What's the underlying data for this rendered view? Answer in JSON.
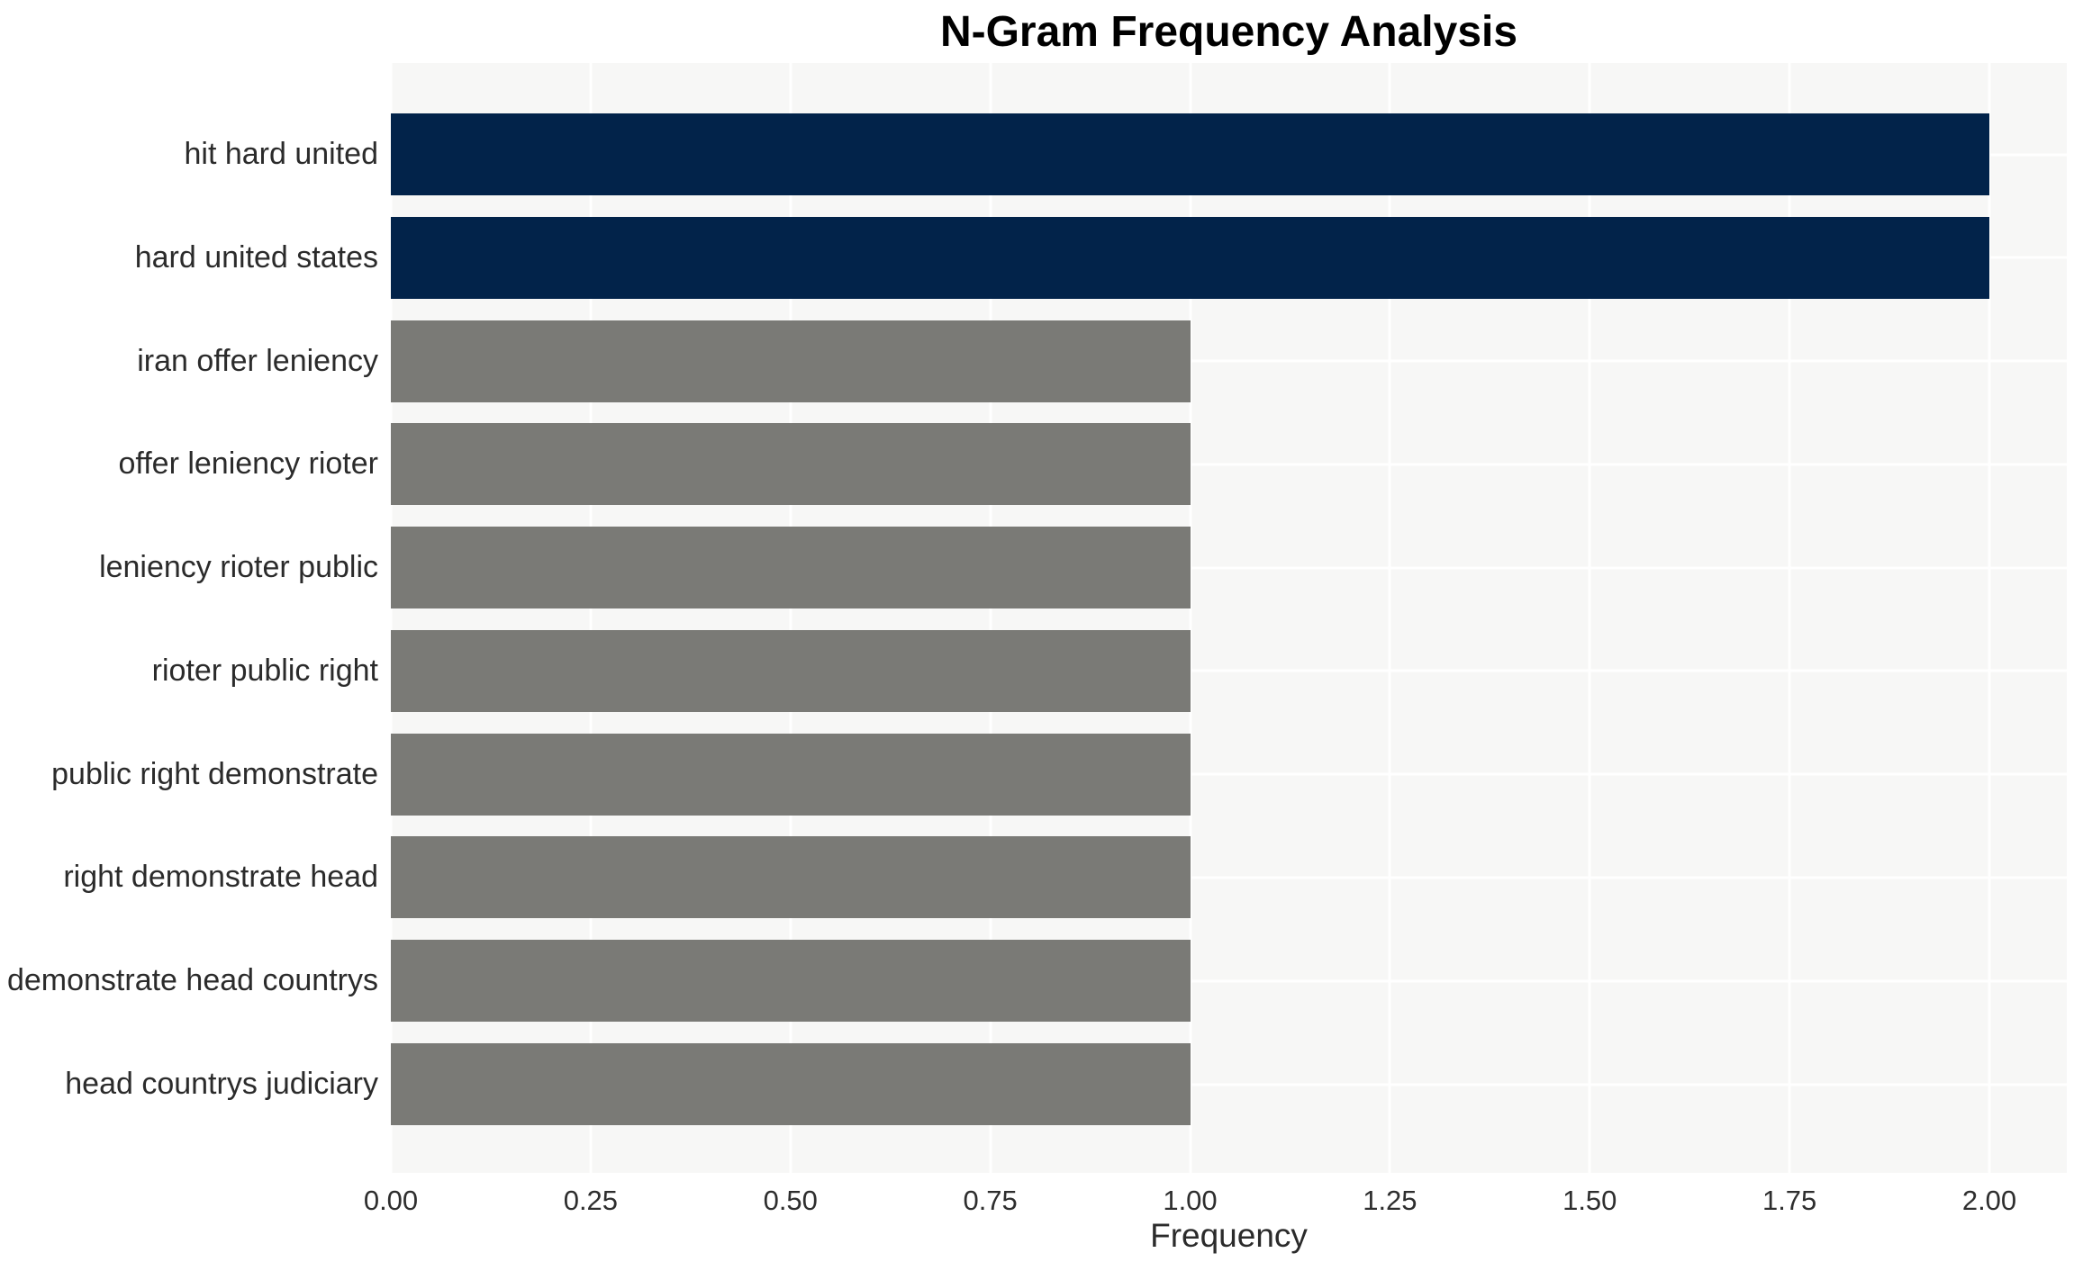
{
  "chart_data": {
    "type": "bar",
    "orientation": "horizontal",
    "title": "N-Gram Frequency Analysis",
    "xlabel": "Frequency",
    "ylabel": "",
    "categories": [
      "hit hard united",
      "hard united states",
      "iran offer leniency",
      "offer leniency rioter",
      "leniency rioter public",
      "rioter public right",
      "public right demonstrate",
      "right demonstrate head",
      "demonstrate head countrys",
      "head countrys judiciary"
    ],
    "values": [
      2.0,
      2.0,
      1.0,
      1.0,
      1.0,
      1.0,
      1.0,
      1.0,
      1.0,
      1.0
    ],
    "bar_colors": [
      "#02234a",
      "#02234a",
      "#7a7a76",
      "#7a7a76",
      "#7a7a76",
      "#7a7a76",
      "#7a7a76",
      "#7a7a76",
      "#7a7a76",
      "#7a7a76"
    ],
    "xlim": [
      0.0,
      2.1
    ],
    "xticks": [
      0.0,
      0.25,
      0.5,
      0.75,
      1.0,
      1.25,
      1.5,
      1.75,
      2.0
    ],
    "xtick_labels": [
      "0.00",
      "0.25",
      "0.50",
      "0.75",
      "1.00",
      "1.25",
      "1.50",
      "1.75",
      "2.00"
    ],
    "grid": true,
    "legend": false,
    "colors": {
      "highlight_bar": "#02234a",
      "default_bar": "#7a7a76",
      "plot_background": "#f7f7f6",
      "gridline": "#ffffff",
      "tick_text": "#2e2e2e",
      "label_text": "#2b2b2b",
      "title_text": "#000000"
    }
  }
}
